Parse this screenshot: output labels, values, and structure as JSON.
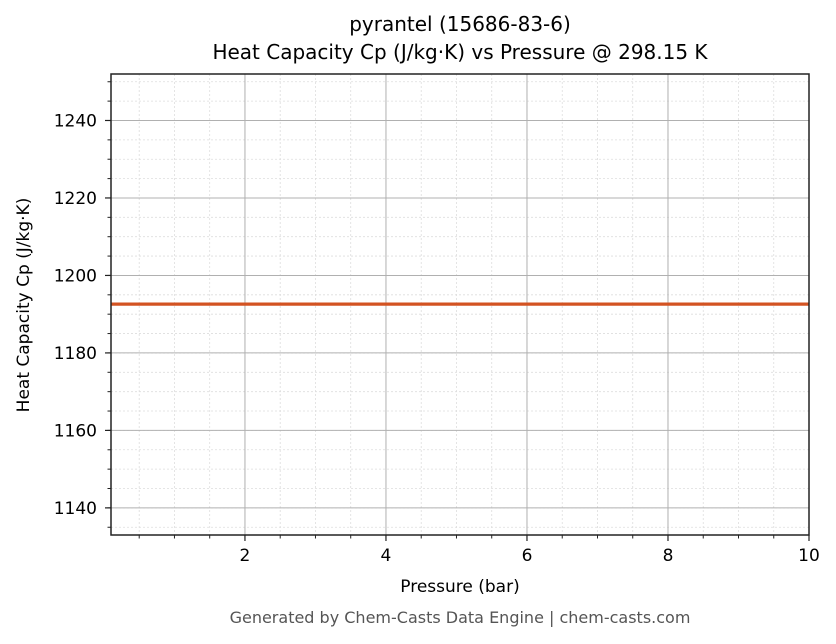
{
  "chart_data": {
    "type": "line",
    "title": "pyrantel (15686-83-6)",
    "subtitle": "Heat Capacity Cp (J/kg·K) vs Pressure @ 298.15 K",
    "xlabel": "Pressure (bar)",
    "ylabel": "Heat Capacity Cp (J/kg·K)",
    "xlim": [
      0.1,
      10
    ],
    "ylim": [
      1133,
      1252
    ],
    "x_ticks": [
      2,
      4,
      6,
      8,
      10
    ],
    "y_ticks": [
      1140,
      1160,
      1180,
      1200,
      1220,
      1240
    ],
    "x_minor_step": 0.5,
    "y_minor_step": 5,
    "grid": true,
    "legend": null,
    "series": [
      {
        "name": "Cp",
        "color": "#d35322",
        "x": [
          0.1,
          1,
          2,
          3,
          4,
          5,
          6,
          7,
          8,
          9,
          10
        ],
        "y": [
          1192.6,
          1192.6,
          1192.6,
          1192.6,
          1192.6,
          1192.6,
          1192.6,
          1192.6,
          1192.6,
          1192.6,
          1192.6
        ]
      }
    ]
  },
  "footer": "Generated by Chem-Casts Data Engine | chem-casts.com"
}
